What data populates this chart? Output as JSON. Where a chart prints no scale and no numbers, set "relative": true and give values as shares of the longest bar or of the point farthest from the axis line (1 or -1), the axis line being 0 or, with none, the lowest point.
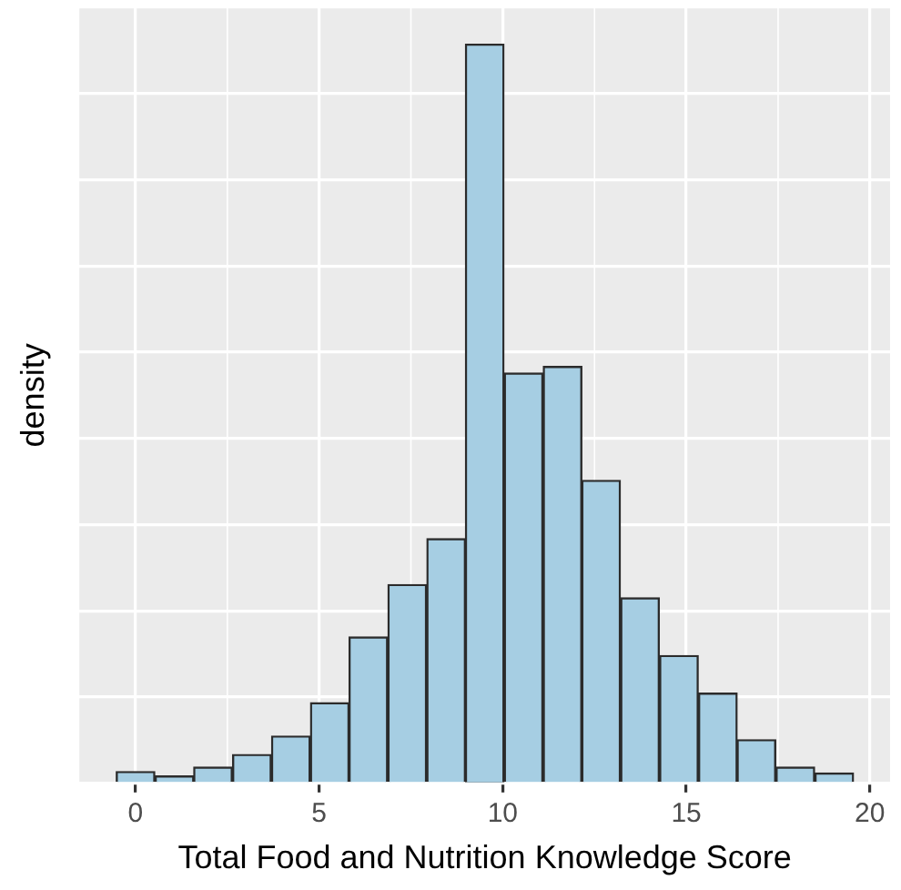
{
  "chart_data": {
    "type": "bar",
    "xlabel": "Total Food and Nutrition Knowledge Score",
    "ylabel": "density",
    "relative": true,
    "x": [
      0.0,
      1.06,
      2.11,
      3.17,
      4.23,
      5.29,
      6.34,
      7.4,
      8.46,
      9.51,
      10.57,
      11.63,
      12.68,
      13.74,
      14.8,
      15.86,
      16.91,
      17.97,
      19.03
    ],
    "values": [
      0.016,
      0.01,
      0.022,
      0.039,
      0.064,
      0.109,
      0.198,
      0.269,
      0.331,
      1.0,
      0.555,
      0.564,
      0.41,
      0.251,
      0.173,
      0.122,
      0.059,
      0.022,
      0.014
    ],
    "color": "#a6cee3",
    "xlim": [
      -1.53,
      20.55
    ],
    "xticks": [
      0,
      5,
      10,
      15,
      20
    ],
    "grid": true,
    "tick_labels": "x"
  }
}
